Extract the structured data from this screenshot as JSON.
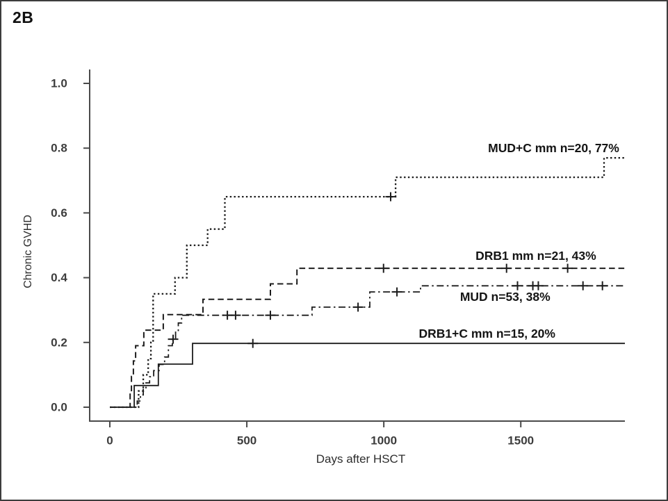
{
  "header": {
    "panel_label": "2B"
  },
  "colors": {
    "curve": "#1c1c1c",
    "axis": "#4a4a4a",
    "tick_label": "#3d3d3d",
    "axis_title": "#2e2e2e",
    "curve_label": "#141414",
    "background": "#ffffff",
    "border": "#3c3c3c"
  },
  "chart_data": {
    "type": "line",
    "subtype": "kaplan-meier-step",
    "title": "2B",
    "xlabel": "Days after HSCT",
    "ylabel": "Chronic GVHD",
    "xlim": [
      0,
      1880
    ],
    "ylim": [
      0,
      1.0
    ],
    "grid": false,
    "legend_position": "inline-labels",
    "xticks": [
      {
        "label": "0",
        "value": 0
      },
      {
        "label": "500",
        "value": 500
      },
      {
        "label": "1000",
        "value": 1000
      },
      {
        "label": "1500",
        "value": 1500
      }
    ],
    "yticks": [
      {
        "label": "0.0",
        "value": 0.0
      },
      {
        "label": "0.2",
        "value": 0.2
      },
      {
        "label": "0.4",
        "value": 0.4
      },
      {
        "label": "0.6",
        "value": 0.6
      },
      {
        "label": "0.8",
        "value": 0.8
      },
      {
        "label": "1.0",
        "value": 1.0
      }
    ],
    "series": [
      {
        "name": "MUD+C mm",
        "label": "MUD+C mm n=20, 77%",
        "n": 20,
        "final_percent": 77,
        "style": "dotted",
        "points": [
          [
            0,
            0
          ],
          [
            105,
            0.05
          ],
          [
            122,
            0.1
          ],
          [
            140,
            0.15
          ],
          [
            150,
            0.2
          ],
          [
            158,
            0.35
          ],
          [
            238,
            0.4
          ],
          [
            281,
            0.5
          ],
          [
            357,
            0.55
          ],
          [
            420,
            0.65
          ],
          [
            1043,
            0.71
          ],
          [
            1804,
            0.77
          ],
          [
            1880,
            0.77
          ]
        ],
        "censors": [
          [
            1025,
            0.65
          ]
        ],
        "label_pos": [
          1620,
          0.8
        ]
      },
      {
        "name": "DRB1 mm",
        "label": "DRB1 mm n=21, 43%",
        "n": 21,
        "final_percent": 43,
        "style": "dashed",
        "points": [
          [
            0,
            0
          ],
          [
            74,
            0.048
          ],
          [
            79,
            0.095
          ],
          [
            86,
            0.143
          ],
          [
            94,
            0.19
          ],
          [
            124,
            0.238
          ],
          [
            195,
            0.286
          ],
          [
            340,
            0.333
          ],
          [
            586,
            0.381
          ],
          [
            683,
            0.429
          ],
          [
            1880,
            0.429
          ]
        ],
        "censors": [
          [
            999,
            0.429
          ],
          [
            1448,
            0.429
          ],
          [
            1671,
            0.429
          ]
        ],
        "label_pos": [
          1555,
          0.468
        ]
      },
      {
        "name": "MUD",
        "label": "MUD n=53, 38%",
        "n": 53,
        "final_percent": 38,
        "style": "dashdot",
        "points": [
          [
            0,
            0
          ],
          [
            100,
            0.019
          ],
          [
            112,
            0.038
          ],
          [
            122,
            0.057
          ],
          [
            132,
            0.075
          ],
          [
            145,
            0.094
          ],
          [
            160,
            0.113
          ],
          [
            180,
            0.132
          ],
          [
            200,
            0.155
          ],
          [
            214,
            0.19
          ],
          [
            228,
            0.21
          ],
          [
            240,
            0.235
          ],
          [
            250,
            0.26
          ],
          [
            262,
            0.284
          ],
          [
            738,
            0.309
          ],
          [
            949,
            0.356
          ],
          [
            1134,
            0.375
          ],
          [
            1880,
            0.375
          ]
        ],
        "censors": [
          [
            231,
            0.21
          ],
          [
            429,
            0.284
          ],
          [
            459,
            0.284
          ],
          [
            586,
            0.284
          ],
          [
            906,
            0.309
          ],
          [
            1048,
            0.356
          ],
          [
            1488,
            0.375
          ],
          [
            1544,
            0.375
          ],
          [
            1564,
            0.375
          ],
          [
            1727,
            0.375
          ],
          [
            1798,
            0.375
          ]
        ],
        "label_pos": [
          1443,
          0.341
        ]
      },
      {
        "name": "DRB1+C mm",
        "label": "DRB1+C mm n=15, 20%",
        "n": 15,
        "final_percent": 20,
        "style": "solid",
        "points": [
          [
            0,
            0
          ],
          [
            89,
            0.067
          ],
          [
            177,
            0.133
          ],
          [
            302,
            0.197
          ],
          [
            1880,
            0.197
          ]
        ],
        "censors": [
          [
            522,
            0.197
          ]
        ],
        "label_pos": [
          1377,
          0.227
        ]
      }
    ]
  }
}
